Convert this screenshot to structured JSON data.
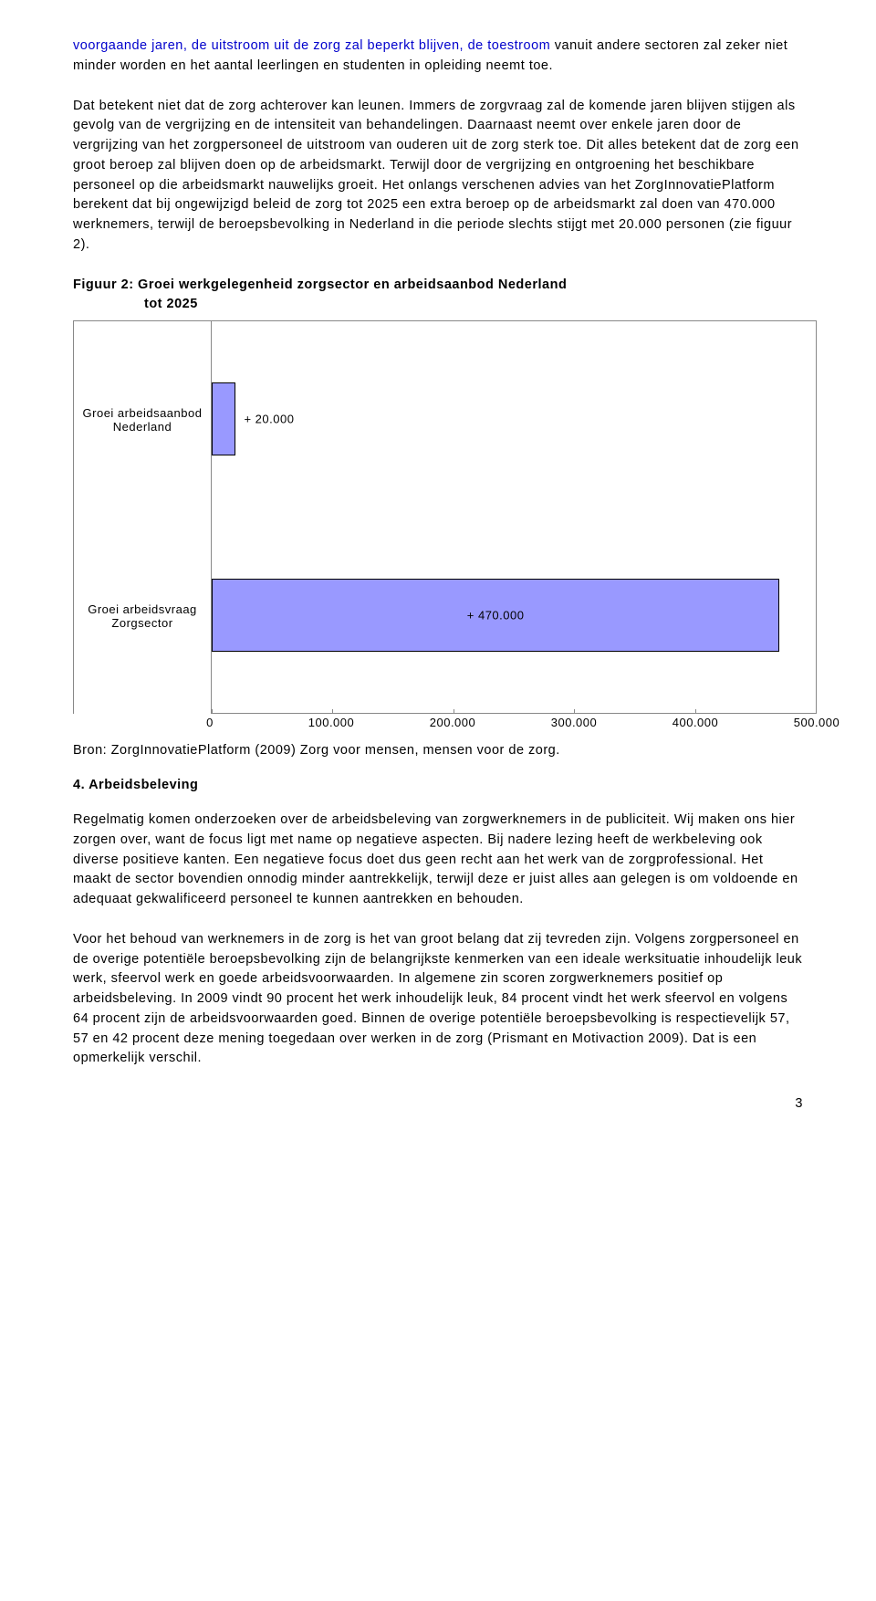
{
  "para1_blue": "voorgaande jaren, de uitstroom uit de zorg zal beperkt blijven, de toestroom",
  "para1_rest": "vanuit andere sectoren zal zeker niet minder worden en het aantal leerlingen en studenten in opleiding neemt toe.",
  "para2": "Dat betekent niet dat de zorg achterover kan leunen. Immers de zorgvraag zal de komende jaren blijven stijgen als gevolg van de vergrijzing en de intensiteit van behandelingen. Daarnaast neemt over enkele jaren door de vergrijzing van het zorgpersoneel de uitstroom van ouderen uit de zorg sterk toe. Dit alles betekent dat de zorg een groot beroep zal blijven doen op de arbeidsmarkt. Terwijl door de vergrijzing en ontgroening het beschikbare personeel op die arbeidsmarkt nauwelijks groeit. Het onlangs verschenen advies van het ZorgInnovatiePlatform berekent dat bij ongewijzigd beleid de zorg tot 2025 een extra beroep op de arbeidsmarkt zal doen van 470.000 werknemers, terwijl de beroepsbevolking in Nederland in die periode slechts stijgt met 20.000 personen (zie figuur 2).",
  "fig_title_1": "Figuur 2: Groei werkgelegenheid zorgsector en arbeidsaanbod Nederland",
  "fig_title_2": "tot 2025",
  "chart": {
    "type": "bar",
    "categories": [
      "Groei arbeidsaanbod Nederland",
      "Groei arbeidsvraag Zorgsector"
    ],
    "values": [
      20000,
      470000
    ],
    "value_labels": [
      "+ 20.000",
      "+ 470.000"
    ],
    "xlim": [
      0,
      500000
    ],
    "xticks": [
      0,
      100000,
      200000,
      300000,
      400000,
      500000
    ],
    "xtick_labels": [
      "0",
      "100.000",
      "200.000",
      "300.000",
      "400.000",
      "500.000"
    ],
    "bar_color": "#9999ff",
    "bar_border": "#000000",
    "plot_border": "#888888",
    "background": "#ffffff",
    "label_fontsize": 13
  },
  "source": "Bron: ZorgInnovatiePlatform (2009) Zorg voor mensen, mensen voor de zorg.",
  "section4_head": "4. Arbeidsbeleving",
  "para3": "Regelmatig komen onderzoeken over de arbeidsbeleving van zorgwerknemers in de publiciteit. Wij maken ons hier zorgen over, want de focus ligt met name op negatieve aspecten. Bij nadere lezing heeft de werkbeleving ook diverse positieve kanten. Een negatieve focus doet dus geen recht aan het werk van de zorgprofessional. Het maakt de sector bovendien onnodig minder aantrekkelijk, terwijl deze er juist alles aan gelegen is om voldoende en adequaat gekwalificeerd personeel te kunnen aantrekken en behouden.",
  "para4": "Voor het behoud van werknemers in de zorg is het van groot belang dat zij tevreden zijn. Volgens zorgpersoneel en de overige potentiële beroepsbevolking zijn de belangrijkste kenmerken van een ideale werksituatie inhoudelijk leuk werk, sfeervol werk en goede arbeidsvoorwaarden. In algemene zin scoren zorgwerknemers positief op arbeidsbeleving. In 2009 vindt 90 procent het werk inhoudelijk leuk, 84 procent vindt het werk sfeervol en volgens 64 procent zijn de arbeidsvoorwaarden goed. Binnen de overige potentiële beroepsbevolking is respectievelijk 57, 57 en 42 procent deze mening toegedaan over werken in de zorg (Prismant en Motivaction 2009). Dat is een opmerkelijk verschil.",
  "page_number": "3"
}
